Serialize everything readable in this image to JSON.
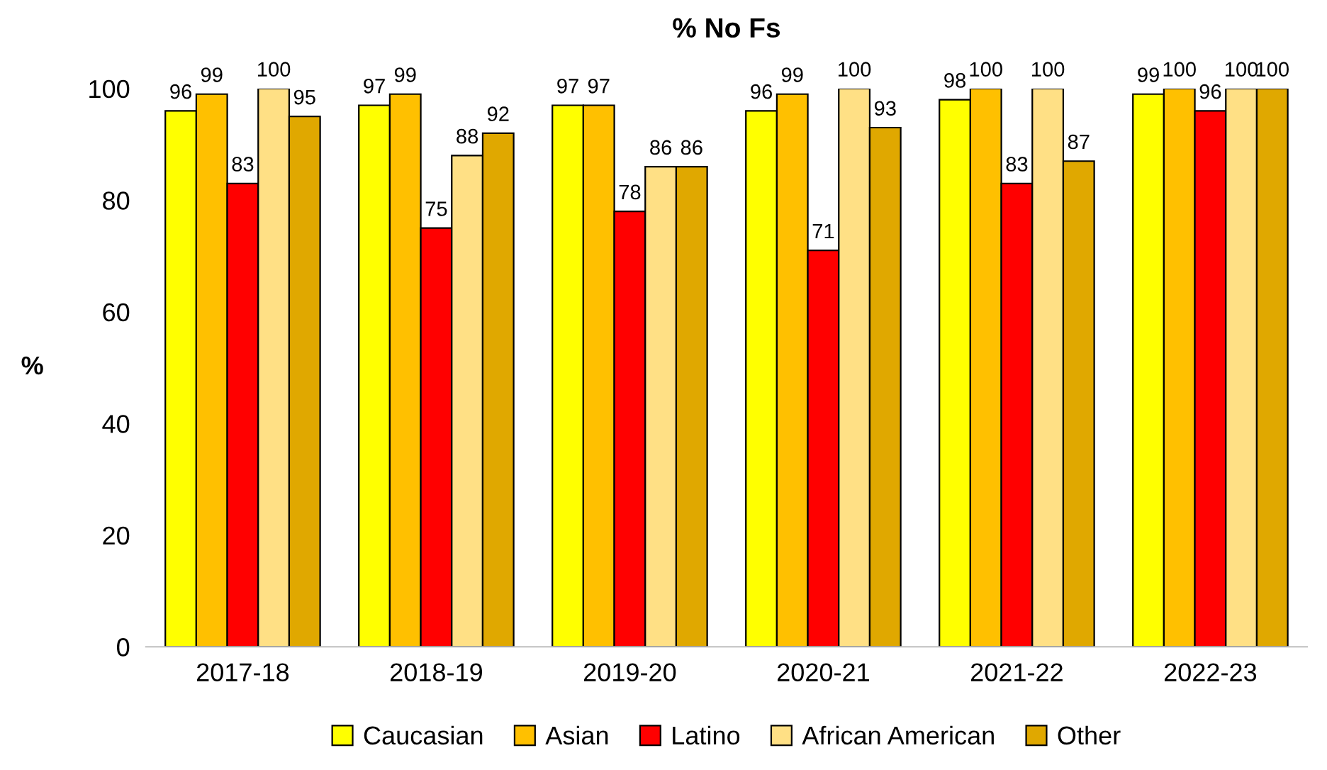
{
  "chart_data": {
    "type": "bar",
    "title": "% No Fs",
    "ylabel": "%",
    "categories": [
      "2017-18",
      "2018-19",
      "2019-20",
      "2020-21",
      "2021-22",
      "2022-23"
    ],
    "series": [
      {
        "name": "Caucasian",
        "color": "#ffff00",
        "values": [
          96,
          97,
          97,
          96,
          98,
          99
        ]
      },
      {
        "name": "Asian",
        "color": "#ffc000",
        "values": [
          99,
          99,
          97,
          99,
          100,
          100
        ]
      },
      {
        "name": "Latino",
        "color": "#ff0000",
        "values": [
          83,
          75,
          78,
          71,
          83,
          96
        ]
      },
      {
        "name": "African American",
        "color": "#ffe085",
        "values": [
          100,
          88,
          86,
          100,
          100,
          100
        ]
      },
      {
        "name": "Other",
        "color": "#e0a800",
        "values": [
          95,
          92,
          86,
          93,
          87,
          100
        ]
      }
    ],
    "ylim": [
      0,
      100
    ],
    "yticks": [
      0,
      20,
      40,
      60,
      80,
      100
    ],
    "grid": false,
    "legend": "bottom",
    "data_labels": true
  }
}
